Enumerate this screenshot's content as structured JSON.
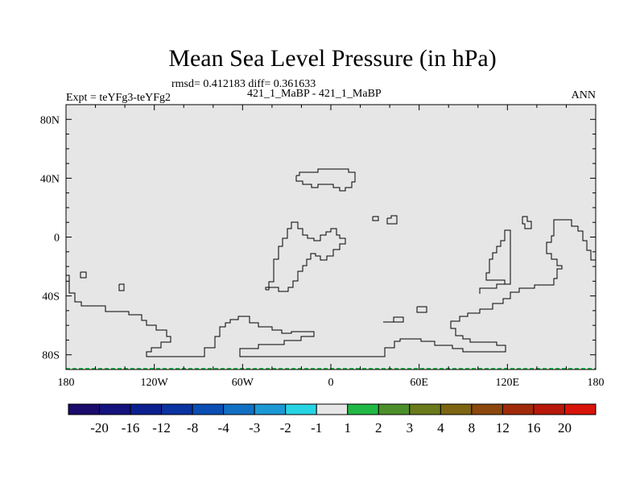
{
  "title": "Mean Sea Level Pressure (in hPa)",
  "stats": "rmsd= 0.412183 diff= 0.361633",
  "run_label": "421_1_MaBP - 421_1_MaBP",
  "expt_label": "Expt = teYFg3-teYFg2",
  "season": "ANN",
  "colors": {
    "background_fill": "#e6e6e6",
    "coastline": "#000000"
  },
  "chart_data": {
    "type": "heatmap",
    "projection": "cylindrical-equidistant",
    "xlim": [
      -180,
      180
    ],
    "ylim": [
      -90,
      90
    ],
    "x_ticks": [
      {
        "value": -180,
        "label": "180"
      },
      {
        "value": -120,
        "label": "120W"
      },
      {
        "value": -60,
        "label": "60W"
      },
      {
        "value": 0,
        "label": "0"
      },
      {
        "value": 60,
        "label": "60E"
      },
      {
        "value": 120,
        "label": "120E"
      },
      {
        "value": 180,
        "label": "180"
      }
    ],
    "y_ticks": [
      {
        "value": 80,
        "label": "80N"
      },
      {
        "value": 40,
        "label": "40N"
      },
      {
        "value": 0,
        "label": "0"
      },
      {
        "value": -40,
        "label": "40S"
      },
      {
        "value": -80,
        "label": "80S"
      }
    ],
    "dominant_bin": "-1 to 1",
    "colorbar": {
      "levels": [
        "-20",
        "-16",
        "-12",
        "-8",
        "-4",
        "-3",
        "-2",
        "-1",
        "1",
        "2",
        "3",
        "4",
        "8",
        "12",
        "16",
        "20"
      ],
      "colors": [
        "#1a0a6b",
        "#14127d",
        "#0c1f8f",
        "#0a32a0",
        "#0a4eb4",
        "#1270c4",
        "#1c98d4",
        "#28d4e4",
        "#e6e6e6",
        "#22b845",
        "#4c8f2a",
        "#6b7a1a",
        "#7d6412",
        "#8c470c",
        "#a02a0a",
        "#b8180a",
        "#d8140a"
      ]
    }
  }
}
